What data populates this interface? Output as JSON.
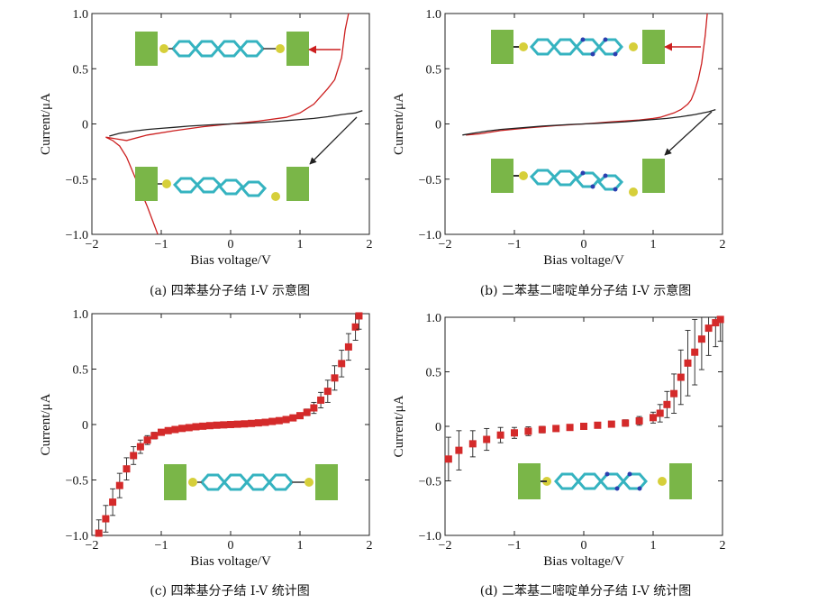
{
  "chart_data": [
    {
      "type": "line",
      "caption": "(a) 四苯基分子结 I-V 示意图",
      "xlabel": "Bias voltage/V",
      "ylabel": "Current/μA",
      "xlim": [
        -2,
        2
      ],
      "ylim": [
        -1,
        1
      ],
      "xticks": [
        "−2",
        "−1",
        "0",
        "1",
        "2"
      ],
      "yticks": [
        "−1.0",
        "−0.5",
        "0",
        "0.5",
        "1.0"
      ],
      "series": [
        {
          "color": "#cc1f1f",
          "x": [
            -1.05,
            -1.2,
            -1.3,
            -1.4,
            -1.5,
            -1.6,
            -1.7,
            -1.8,
            -1.5,
            -1.2,
            -0.8,
            -0.4,
            0,
            0.4,
            0.8,
            1.0,
            1.2,
            1.3,
            1.4,
            1.5,
            1.55,
            1.6,
            1.65,
            1.7
          ],
          "y": [
            -1.0,
            -0.75,
            -0.6,
            -0.45,
            -0.3,
            -0.2,
            -0.15,
            -0.12,
            -0.15,
            -0.1,
            -0.06,
            -0.025,
            0,
            0.025,
            0.06,
            0.1,
            0.18,
            0.25,
            0.32,
            0.4,
            0.5,
            0.6,
            0.85,
            1.0
          ]
        },
        {
          "color": "#222222",
          "x": [
            -1.75,
            -1.6,
            -1.4,
            -1.2,
            -1,
            -0.8,
            -0.6,
            -0.4,
            -0.2,
            0,
            0.2,
            0.4,
            0.6,
            0.8,
            1,
            1.2,
            1.4,
            1.6,
            1.8,
            1.9
          ],
          "y": [
            -0.11,
            -0.085,
            -0.065,
            -0.05,
            -0.04,
            -0.03,
            -0.02,
            -0.012,
            -0.005,
            0,
            0.005,
            0.012,
            0.02,
            0.03,
            0.04,
            0.05,
            0.065,
            0.085,
            0.1,
            0.12
          ]
        }
      ]
    },
    {
      "type": "line",
      "caption": "(b) 二苯基二嘧啶单分子结 I-V 示意图",
      "xlabel": "Bias voltage/V",
      "ylabel": "Current/μA",
      "xlim": [
        -2,
        2
      ],
      "ylim": [
        -1,
        1
      ],
      "xticks": [
        "−2",
        "−1",
        "0",
        "1",
        "2"
      ],
      "yticks": [
        "−1.0",
        "−0.5",
        "0",
        "0.5",
        "1.0"
      ],
      "series": [
        {
          "color": "#cc1f1f",
          "x": [
            -1.7,
            -1.5,
            -1.2,
            -0.8,
            -0.4,
            0,
            0.4,
            0.8,
            1.0,
            1.1,
            1.2,
            1.3,
            1.4,
            1.5,
            1.55,
            1.6,
            1.65,
            1.7,
            1.75,
            1.78
          ],
          "y": [
            -0.1,
            -0.09,
            -0.06,
            -0.035,
            -0.015,
            0,
            0.02,
            0.035,
            0.05,
            0.06,
            0.08,
            0.1,
            0.13,
            0.18,
            0.22,
            0.3,
            0.4,
            0.55,
            0.8,
            1.0
          ]
        },
        {
          "color": "#222222",
          "x": [
            -1.75,
            -1.6,
            -1.4,
            -1.2,
            -1,
            -0.8,
            -0.6,
            -0.4,
            -0.2,
            0,
            0.2,
            0.4,
            0.6,
            0.8,
            1,
            1.2,
            1.4,
            1.6,
            1.8,
            1.9
          ],
          "y": [
            -0.1,
            -0.085,
            -0.065,
            -0.05,
            -0.04,
            -0.03,
            -0.02,
            -0.012,
            -0.005,
            0,
            0.005,
            0.012,
            0.02,
            0.03,
            0.04,
            0.05,
            0.065,
            0.085,
            0.11,
            0.13
          ]
        }
      ]
    },
    {
      "type": "scatter",
      "caption": "(c) 四苯基分子结 I-V 统计图",
      "xlabel": "Bias voltage/V",
      "ylabel": "Current/μA",
      "xlim": [
        -2,
        2
      ],
      "ylim": [
        -1,
        1
      ],
      "xticks": [
        "−2",
        "−1",
        "0",
        "1",
        "2"
      ],
      "yticks": [
        "−1.0",
        "−0.5",
        "0",
        "0.5",
        "1.0"
      ],
      "series": [
        {
          "color": "#d42a2a",
          "x": [
            -1.9,
            -1.8,
            -1.7,
            -1.6,
            -1.5,
            -1.4,
            -1.3,
            -1.2,
            -1.1,
            -1.0,
            -0.9,
            -0.8,
            -0.7,
            -0.6,
            -0.5,
            -0.4,
            -0.3,
            -0.2,
            -0.1,
            0,
            0.1,
            0.2,
            0.3,
            0.4,
            0.5,
            0.6,
            0.7,
            0.8,
            0.9,
            1.0,
            1.1,
            1.2,
            1.3,
            1.4,
            1.5,
            1.6,
            1.7,
            1.8,
            1.85
          ],
          "y": [
            -0.98,
            -0.85,
            -0.7,
            -0.55,
            -0.4,
            -0.28,
            -0.2,
            -0.14,
            -0.1,
            -0.07,
            -0.055,
            -0.045,
            -0.035,
            -0.028,
            -0.02,
            -0.015,
            -0.01,
            -0.006,
            -0.003,
            0,
            0.003,
            0.006,
            0.01,
            0.015,
            0.02,
            0.028,
            0.035,
            0.045,
            0.06,
            0.08,
            0.11,
            0.15,
            0.22,
            0.3,
            0.42,
            0.55,
            0.7,
            0.88,
            0.98
          ],
          "err": [
            0.12,
            0.12,
            0.12,
            0.11,
            0.1,
            0.08,
            0.06,
            0.04,
            0.03,
            0.02,
            0.015,
            0.01,
            0.01,
            0.01,
            0.01,
            0.008,
            0.008,
            0.006,
            0.005,
            0.005,
            0.005,
            0.006,
            0.008,
            0.008,
            0.01,
            0.01,
            0.01,
            0.012,
            0.015,
            0.02,
            0.03,
            0.05,
            0.07,
            0.1,
            0.11,
            0.12,
            0.12,
            0.12,
            0.12
          ]
        }
      ]
    },
    {
      "type": "scatter",
      "caption": "(d) 二苯基二嘧啶单分子结 I-V 统计图",
      "xlabel": "Bias voltage/V",
      "ylabel": "Current/μA",
      "xlim": [
        -2,
        2
      ],
      "ylim": [
        -1,
        1
      ],
      "xticks": [
        "−2",
        "−1",
        "0",
        "1",
        "2"
      ],
      "yticks": [
        "−1.0",
        "−0.5",
        "0",
        "0.5",
        "1.0"
      ],
      "series": [
        {
          "color": "#d42a2a",
          "x": [
            -1.95,
            -1.8,
            -1.6,
            -1.4,
            -1.2,
            -1.0,
            -0.8,
            -0.6,
            -0.4,
            -0.2,
            0,
            0.2,
            0.4,
            0.6,
            0.8,
            1.0,
            1.1,
            1.2,
            1.3,
            1.4,
            1.5,
            1.6,
            1.7,
            1.8,
            1.9,
            1.97
          ],
          "y": [
            -0.3,
            -0.22,
            -0.16,
            -0.12,
            -0.08,
            -0.06,
            -0.045,
            -0.03,
            -0.02,
            -0.01,
            0,
            0.01,
            0.02,
            0.03,
            0.05,
            0.08,
            0.12,
            0.2,
            0.3,
            0.45,
            0.58,
            0.68,
            0.8,
            0.9,
            0.95,
            0.98
          ],
          "err": [
            0.2,
            0.18,
            0.12,
            0.1,
            0.07,
            0.05,
            0.04,
            0.03,
            0.02,
            0.015,
            0.01,
            0.015,
            0.02,
            0.03,
            0.04,
            0.05,
            0.08,
            0.12,
            0.18,
            0.25,
            0.3,
            0.3,
            0.28,
            0.25,
            0.22,
            0.2
          ]
        }
      ]
    }
  ]
}
